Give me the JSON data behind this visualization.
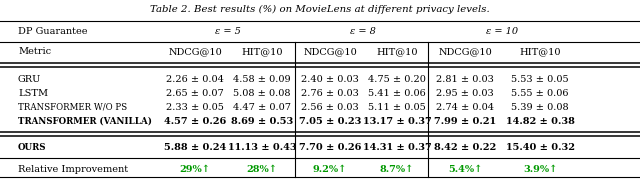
{
  "title": "Table 2. Best results (%) on MovieLens at different privacy levels.",
  "dp_header": [
    "DP Guarantee",
    "ε = 5",
    "ε = 8",
    "ε = 10"
  ],
  "metric_row": [
    "Metric",
    "NDCG@10",
    "HIT@10",
    "NDCG@10",
    "HIT@10",
    "NDCG@10",
    "HIT@10"
  ],
  "rows": [
    [
      "GRU",
      "2.26 ± 0.04",
      "4.58 ± 0.09",
      "2.40 ± 0.03",
      "4.75 ± 0.20",
      "2.81 ± 0.03",
      "5.53 ± 0.05"
    ],
    [
      "LSTM",
      "2.65 ± 0.07",
      "5.08 ± 0.08",
      "2.76 ± 0.03",
      "5.41 ± 0.06",
      "2.95 ± 0.03",
      "5.55 ± 0.06"
    ],
    [
      "Transformer w/o PS",
      "2.33 ± 0.05",
      "4.47 ± 0.07",
      "2.56 ± 0.03",
      "5.11 ± 0.05",
      "2.74 ± 0.04",
      "5.39 ± 0.08"
    ],
    [
      "Transformer (Vanilla)",
      "4.57 ± 0.26",
      "8.69 ± 0.53",
      "7.05 ± 0.23",
      "13.17 ± 0.37",
      "7.99 ± 0.21",
      "14.82 ± 0.38"
    ]
  ],
  "ours_row": [
    "Ours",
    "5.88 ± 0.24",
    "11.13 ± 0.43",
    "7.70 ± 0.26",
    "14.31 ± 0.37",
    "8.42 ± 0.22",
    "15.40 ± 0.32"
  ],
  "improvement_row": [
    "Relative Improvement",
    "29%↑",
    "28%↑",
    "9.2%↑",
    "8.7%↑",
    "5.4%↑",
    "3.9%↑"
  ],
  "improvement_color": "#009900",
  "bg_color": "#ffffff",
  "text_color": "#000000",
  "font_size": 7.0
}
